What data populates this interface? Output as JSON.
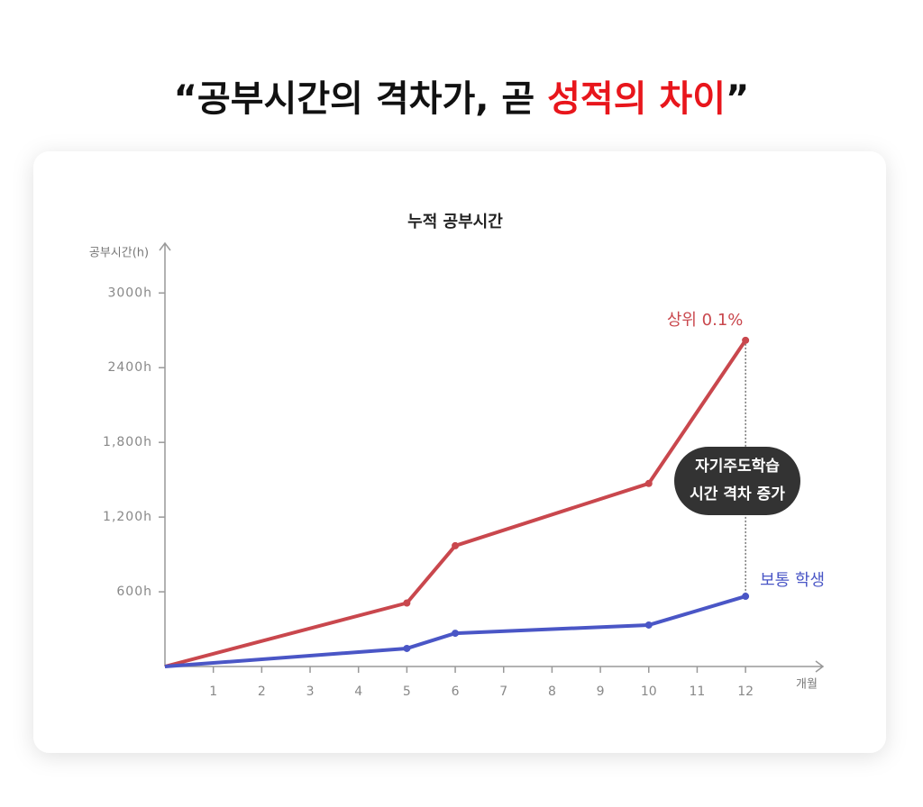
{
  "title_prefix": "“공부시간의 격차가, 곧 ",
  "title_highlight": "성적의 차이",
  "title_suffix": "”",
  "chart_data": {
    "type": "line",
    "title": "누적 공부시간",
    "y_label": "공부시간(h)",
    "x_label": "개월",
    "x": [
      0,
      5,
      6,
      10,
      12
    ],
    "series": [
      {
        "name": "상위 0.1%",
        "color": "#c9474d",
        "values": [
          0,
          510,
          970,
          1470,
          2620
        ]
      },
      {
        "name": "보통 학생",
        "color": "#4a56c6",
        "values": [
          0,
          145,
          267,
          333,
          564
        ]
      }
    ],
    "xlim": [
      0,
      13.6
    ],
    "xticks": [
      1,
      2,
      3,
      4,
      5,
      6,
      7,
      8,
      9,
      10,
      11,
      12
    ],
    "ylim": [
      0,
      3400
    ],
    "yticks": [
      {
        "value": 600,
        "label": "600h"
      },
      {
        "value": 1200,
        "label": "1,200h"
      },
      {
        "value": 1800,
        "label": "1,800h"
      },
      {
        "value": 2400,
        "label": "2400h"
      },
      {
        "value": 3000,
        "label": "3000h"
      }
    ],
    "annotation": [
      "자기주도학습",
      "시간 격차 증가"
    ],
    "grid": false
  }
}
